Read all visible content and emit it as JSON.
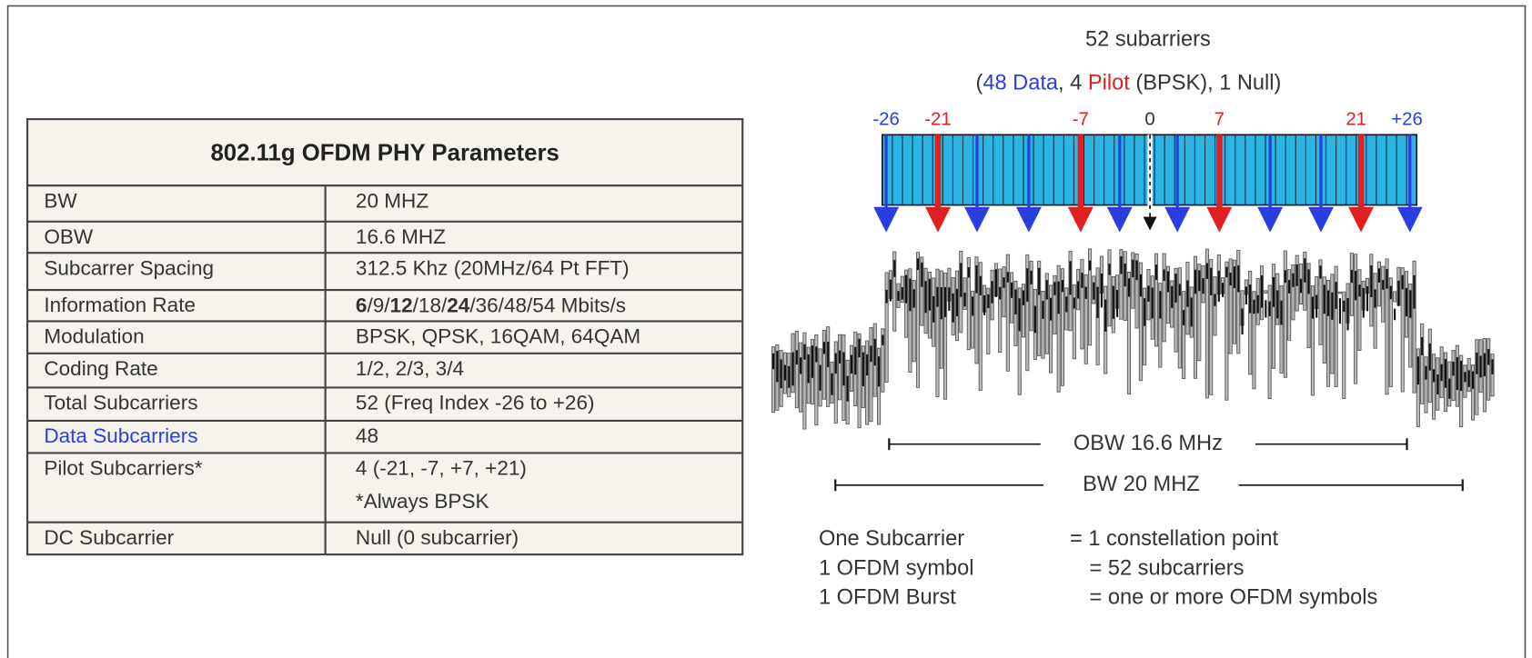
{
  "table": {
    "title": "802.11g OFDM PHY Parameters",
    "rows": [
      [
        "BW",
        "20 MHZ"
      ],
      [
        "OBW",
        "16.6 MHZ"
      ],
      [
        "Subcarrer Spacing",
        "312.5 Khz   (20MHz/64 Pt FFT)"
      ],
      [
        "Information Rate",
        [
          "6",
          "/9/",
          "12",
          "/18/",
          "24",
          "/36/48/54 Mbits/s"
        ]
      ],
      [
        "Modulation",
        "BPSK, QPSK, 16QAM, 64QAM"
      ],
      [
        "Coding Rate",
        "1/2,  2/3, 3/4"
      ],
      [
        "Total Subcarriers",
        "52   (Freq Index -26 to +26)"
      ],
      [
        "Data Subcarriers",
        "48"
      ],
      [
        "Pilot Subcarriers*",
        [
          "4 (-21, -7, +7, +21)",
          "*Always BPSK"
        ]
      ],
      [
        "DC Subcarrier",
        "Null (0 subcarrier)"
      ]
    ]
  },
  "diagram": {
    "title": "52 subarriers",
    "subtitle": [
      "(",
      "48 Data",
      ", 4 ",
      "Pilot",
      " (BPSK), 1 Null)"
    ],
    "index_labels": [
      "-26",
      "-21",
      "-7",
      "0",
      "7",
      "21",
      "+26"
    ],
    "obw_label": "OBW 16.6 MHz",
    "bw_label": "BW 20 MHZ",
    "legend": [
      [
        "One Subcarrier",
        "= 1 constellation point"
      ],
      [
        "1 OFDM symbol",
        "= 52 subcarriers"
      ],
      [
        "1 OFDM Burst",
        "= one or more OFDM symbols"
      ]
    ]
  }
}
